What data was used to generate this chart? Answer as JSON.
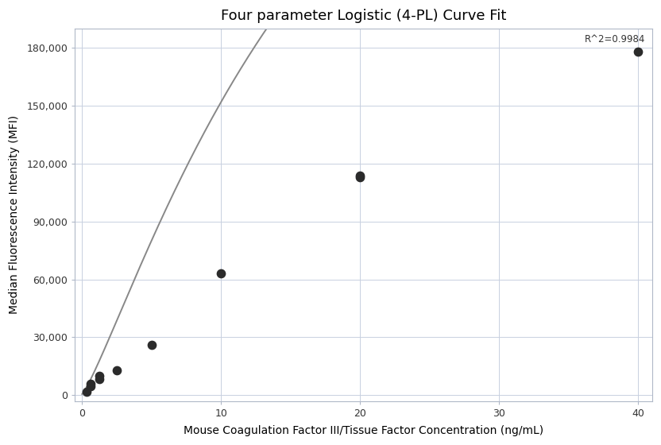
{
  "title": "Four parameter Logistic (4-PL) Curve Fit",
  "xlabel": "Mouse Coagulation Factor III/Tissue Factor Concentration (ng/mL)",
  "ylabel": "Median Fluorescence Intensity (MFI)",
  "r_squared_label": "R^2=0.9984",
  "scatter_x": [
    0.313,
    0.625,
    0.625,
    1.25,
    1.25,
    2.5,
    5.0,
    10.0,
    20.0,
    20.0,
    40.0
  ],
  "scatter_y": [
    1800,
    4500,
    6000,
    8500,
    10000,
    13000,
    26000,
    63000,
    113000,
    114000,
    178000
  ],
  "dot_color": "#2b2b2b",
  "dot_size": 55,
  "curve_color": "#888888",
  "curve_linewidth": 1.4,
  "xlim": [
    -0.5,
    41
  ],
  "ylim": [
    -3000,
    190000
  ],
  "yticks": [
    0,
    30000,
    60000,
    90000,
    120000,
    150000,
    180000
  ],
  "ytick_labels": [
    "0",
    "30,000",
    "60,000",
    "90,000",
    "120,000",
    "150,000",
    "180,000"
  ],
  "xticks": [
    0,
    10,
    20,
    30,
    40
  ],
  "xtick_labels": [
    "0",
    "10",
    "20",
    "30",
    "40"
  ],
  "grid_color": "#c8d0e0",
  "grid_linewidth": 0.7,
  "background_color": "#ffffff",
  "title_fontsize": 13,
  "label_fontsize": 10,
  "tick_fontsize": 9,
  "annotation_fontsize": 8.5,
  "figsize": [
    8.32,
    5.6
  ],
  "dpi": 100
}
